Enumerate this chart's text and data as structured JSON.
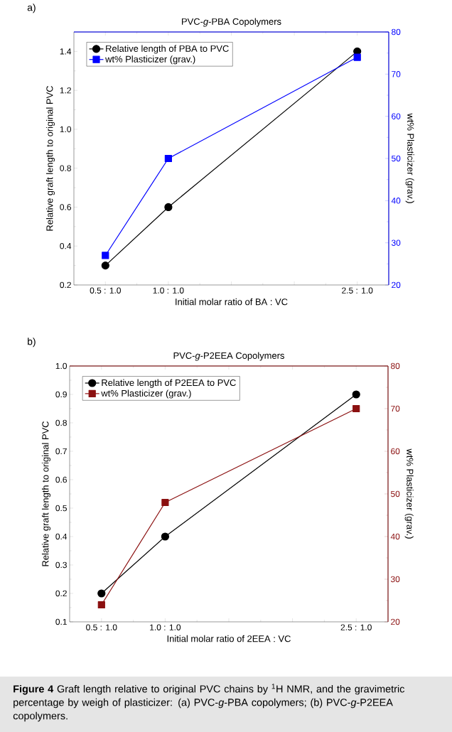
{
  "chart_data": [
    {
      "type": "line",
      "title": "PVC-*g*-PBA Copolymers",
      "xlabel": "Initial molar ratio of BA : VC",
      "ylabel": "Relative graft length to original PVC",
      "y2label": "wt% Plasticizer (grav.)",
      "categories": [
        "0.5 : 1.0",
        "1.0 : 1.0",
        null,
        null,
        "2.5 : 1.0"
      ],
      "ylim": [
        0.2,
        1.5
      ],
      "yticks": [
        0.2,
        0.4,
        0.6,
        0.8,
        {
          "value": 1.0,
          "label": "1.0"
        },
        1.2,
        1.4
      ],
      "y2lim": [
        20,
        80
      ],
      "y2ticks": [
        20,
        30,
        40,
        50,
        60,
        70,
        80
      ],
      "legend": "top left",
      "annotations": [
        "a)"
      ],
      "series": [
        {
          "name": "Relative length of PBA to PVC",
          "color": "#000000",
          "marker": "circle",
          "values": [
            0.3,
            0.6,
            null,
            null,
            1.4
          ]
        },
        {
          "name": "wt% Plasticizer (grav.)",
          "color": "#0000ff",
          "marker": "square",
          "axis": "y2",
          "values": [
            27,
            50,
            null,
            null,
            74
          ]
        }
      ]
    },
    {
      "type": "line",
      "title": "PVC-*g*-P2EEA Copolymers",
      "xlabel": "Initial molar ratio of 2EEA : VC",
      "ylabel": "Relative graft length to original PVC",
      "y2label": "wt% Plasticizer (grav.)",
      "categories": [
        "0.5 : 1.0",
        "1.0 : 1.0",
        null,
        null,
        "2.5 : 1.0"
      ],
      "ylim": [
        0.1,
        1.0
      ],
      "yticks": [
        0.1,
        0.2,
        0.3,
        0.4,
        0.5,
        0.6,
        0.7,
        0.8,
        0.9,
        {
          "value": 1.0,
          "label": "1.0"
        }
      ],
      "y2lim": [
        20,
        80
      ],
      "y2ticks": [
        20,
        30,
        40,
        50,
        60,
        70,
        80
      ],
      "legend": "top left",
      "annotations": [
        "b)",
        "**Figure 4**   Graft length relative to original PVC chains by $^{1}$H NMR, and the gravimetric percentage by weigh of plasticizer: (a) PVC-*g*-PBA copolymers; (b) PVC-*g*-P2EEA copolymers."
      ],
      "series": [
        {
          "name": "Relative length of P2EEA to PVC",
          "color": "#000000",
          "marker": "circle",
          "values": [
            0.2,
            0.4,
            null,
            null,
            0.9
          ]
        },
        {
          "name": "wt% Plasticizer (grav.)",
          "color": "#8b1010",
          "marker": "square",
          "axis": "y2",
          "values": [
            24,
            48,
            null,
            null,
            70
          ]
        }
      ]
    }
  ]
}
